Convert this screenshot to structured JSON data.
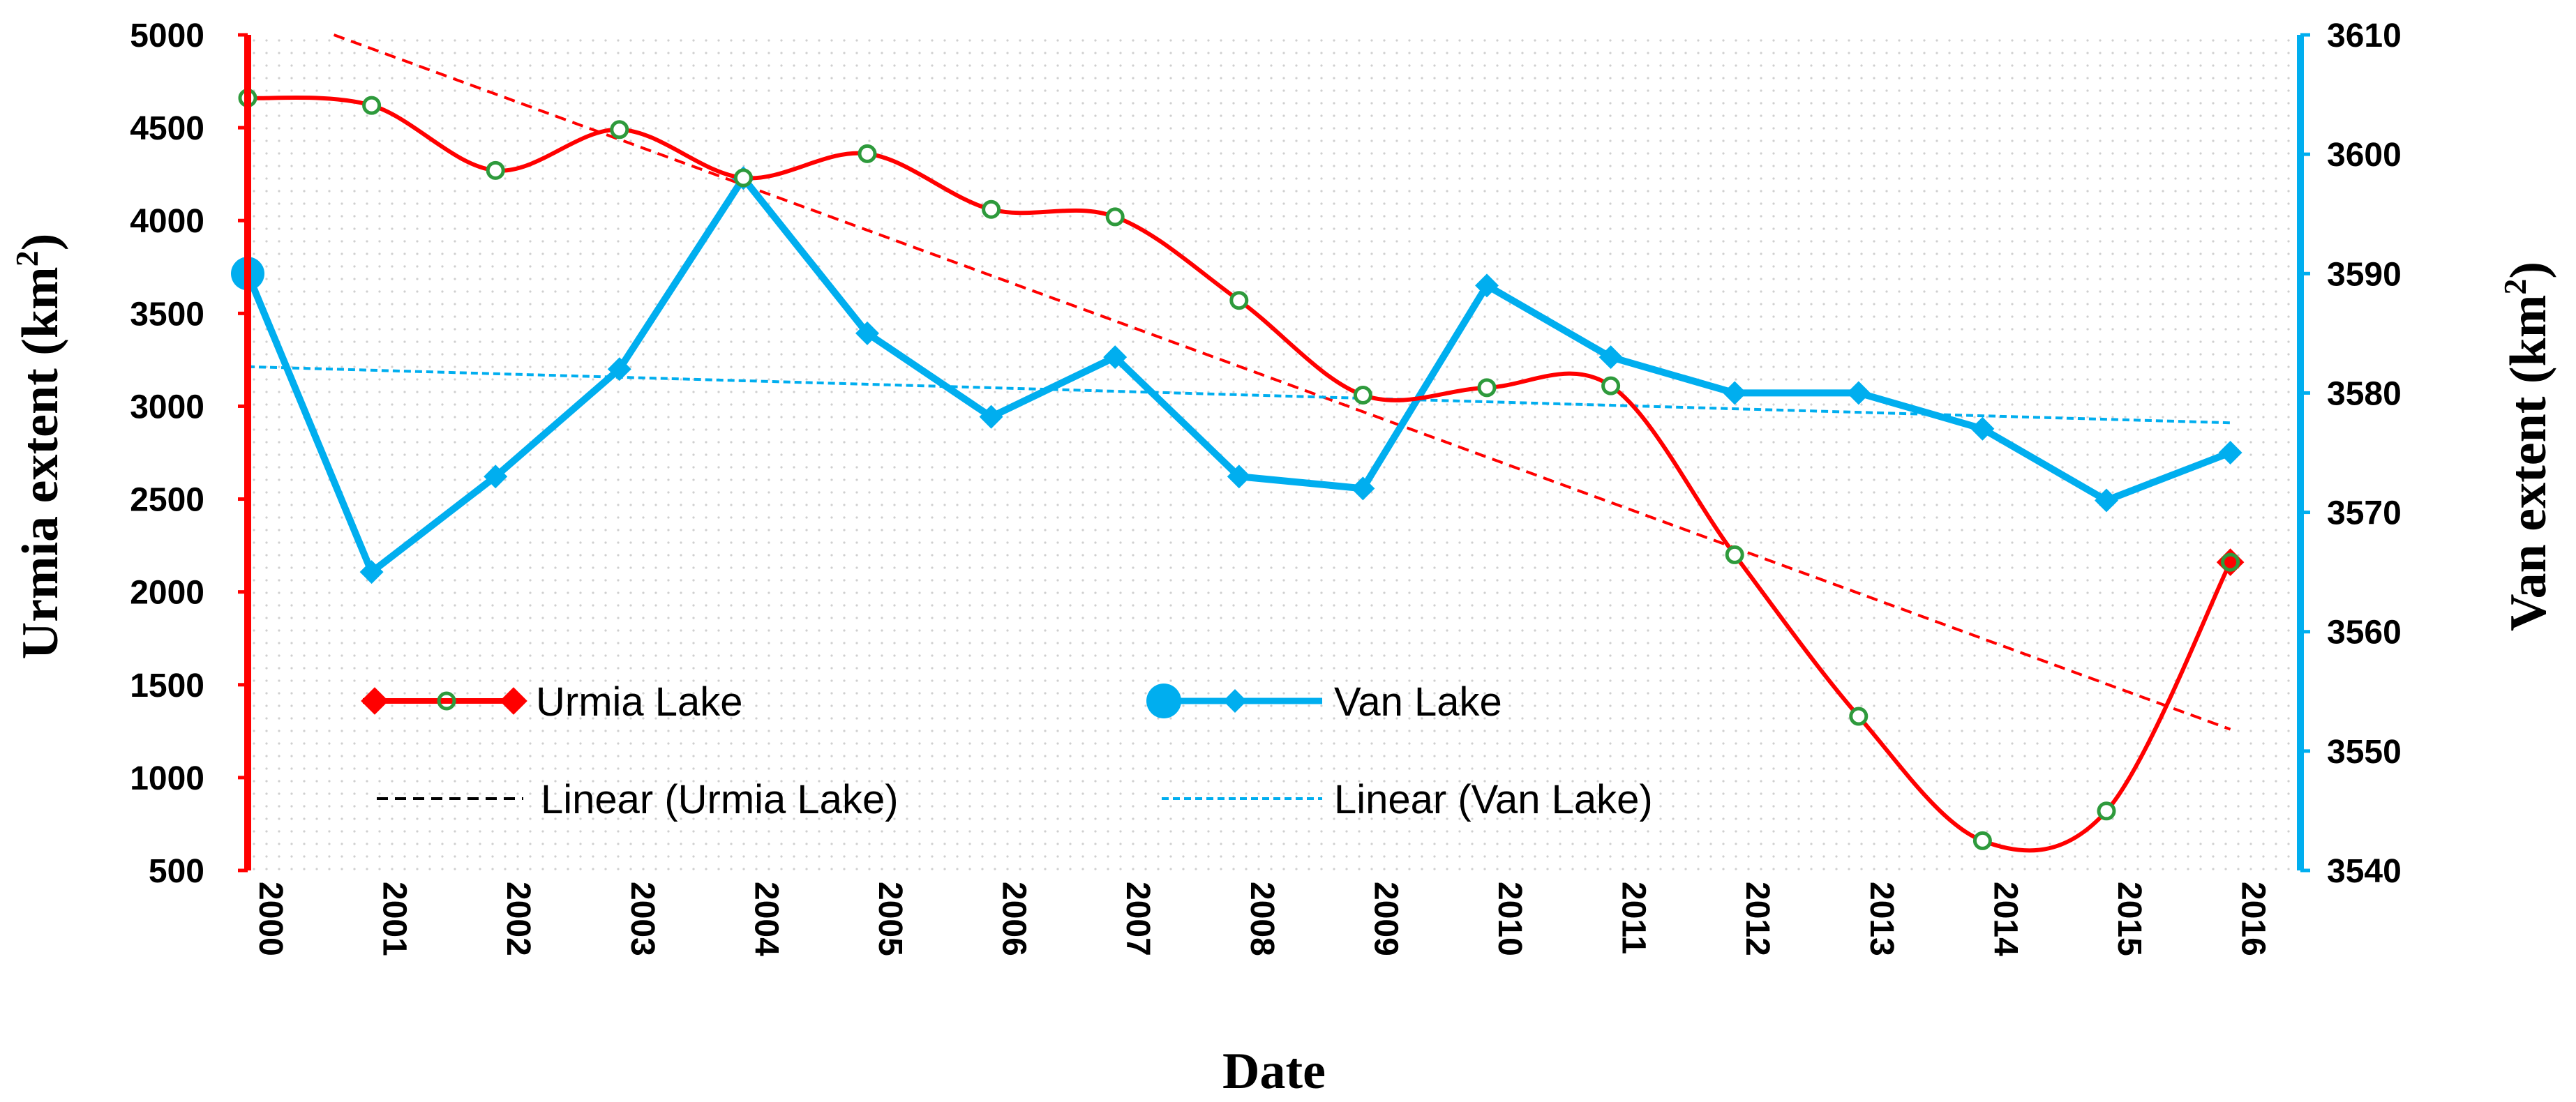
{
  "chart_data": {
    "type": "line",
    "title": "",
    "xlabel": "Date",
    "ylabel_left_prefix": "Urmia extent (km",
    "ylabel_right_prefix": "Van extent (km",
    "ylabel_superscript": "2",
    "ylabel_suffix": ")",
    "categories": [
      "2000",
      "2001",
      "2002",
      "2003",
      "2004",
      "2005",
      "2006",
      "2007",
      "2008",
      "2009",
      "2010",
      "2011",
      "2012",
      "2013",
      "2014",
      "2015",
      "2016"
    ],
    "ylim_left": [
      500,
      5000
    ],
    "yticks_left": [
      500,
      1000,
      1500,
      2000,
      2500,
      3000,
      3500,
      4000,
      4500,
      5000
    ],
    "ylim_right": [
      3540,
      3610
    ],
    "yticks_right": [
      3540,
      3550,
      3560,
      3570,
      3580,
      3590,
      3600,
      3610
    ],
    "grid": "dotted background",
    "series": [
      {
        "name": "Urmia Lake",
        "axis": "left",
        "color": "#ff0000",
        "marker_color": "#2e9a3c",
        "values": [
          4660,
          4620,
          4270,
          4490,
          4230,
          4360,
          4060,
          4020,
          3570,
          3060,
          3100,
          3110,
          2200,
          1330,
          660,
          820,
          2160
        ]
      },
      {
        "name": "Van Lake",
        "axis": "right",
        "color": "#00aeef",
        "values": [
          3590,
          3565,
          3573,
          3582,
          3598,
          3585,
          3578,
          3583,
          3573,
          3572,
          3589,
          3583,
          3580,
          3580,
          3577,
          3571,
          3575
        ]
      }
    ],
    "trendlines": [
      {
        "name": "Linear (Urmia Lake)",
        "axis": "left",
        "color": "#ff0000",
        "start": 5170,
        "end": 1260
      },
      {
        "name": "Linear (Van Lake)",
        "axis": "right",
        "color": "#00aeef",
        "start": 3582.2,
        "end": 3577.5
      }
    ],
    "legend": {
      "position": "bottom-left inside plot",
      "entries": [
        "Urmia Lake",
        "Van Lake",
        "Linear (Urmia Lake)",
        "Linear (Van Lake)"
      ]
    }
  }
}
